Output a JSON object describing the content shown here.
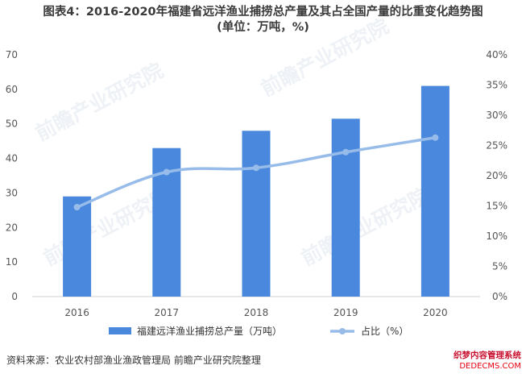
{
  "title_line1": "图表4：2016-2020年福建省远洋渔业捕捞总产量及其占全国产量的比重变化趋势图",
  "title_line2": "(单位：万吨，%)",
  "source": "资料来源：农业农村部渔业渔政管理局 前瞻产业研究院整理",
  "watermark_text": "前瞻产业研究院",
  "stamp": {
    "line1": "织梦内容管理系统",
    "line2": "DEDECMS.COM"
  },
  "colors": {
    "bar": "#4a88dd",
    "line": "#97bcea",
    "axis": "#d0d0d0",
    "tick": "#555555"
  },
  "chart_data": {
    "type": "bar",
    "categories": [
      "2016",
      "2017",
      "2018",
      "2019",
      "2020"
    ],
    "series": [
      {
        "name": "福建远洋渔业捕捞总产量（万吨）",
        "type": "bar",
        "axis": "left",
        "values": [
          29,
          43,
          48,
          51.5,
          61
        ]
      },
      {
        "name": "占比（%）",
        "type": "line",
        "axis": "right",
        "values": [
          14.8,
          20.6,
          21.3,
          23.9,
          26.3
        ]
      }
    ],
    "y_left": {
      "lim": [
        0,
        70
      ],
      "ticks": [
        "0",
        "10",
        "20",
        "30",
        "40",
        "50",
        "60",
        "70"
      ]
    },
    "y_right": {
      "lim": [
        0,
        40
      ],
      "ticks": [
        "0%",
        "5%",
        "10%",
        "15%",
        "20%",
        "25%",
        "30%",
        "35%",
        "40%"
      ]
    },
    "grid": false,
    "legend_position": "bottom"
  }
}
